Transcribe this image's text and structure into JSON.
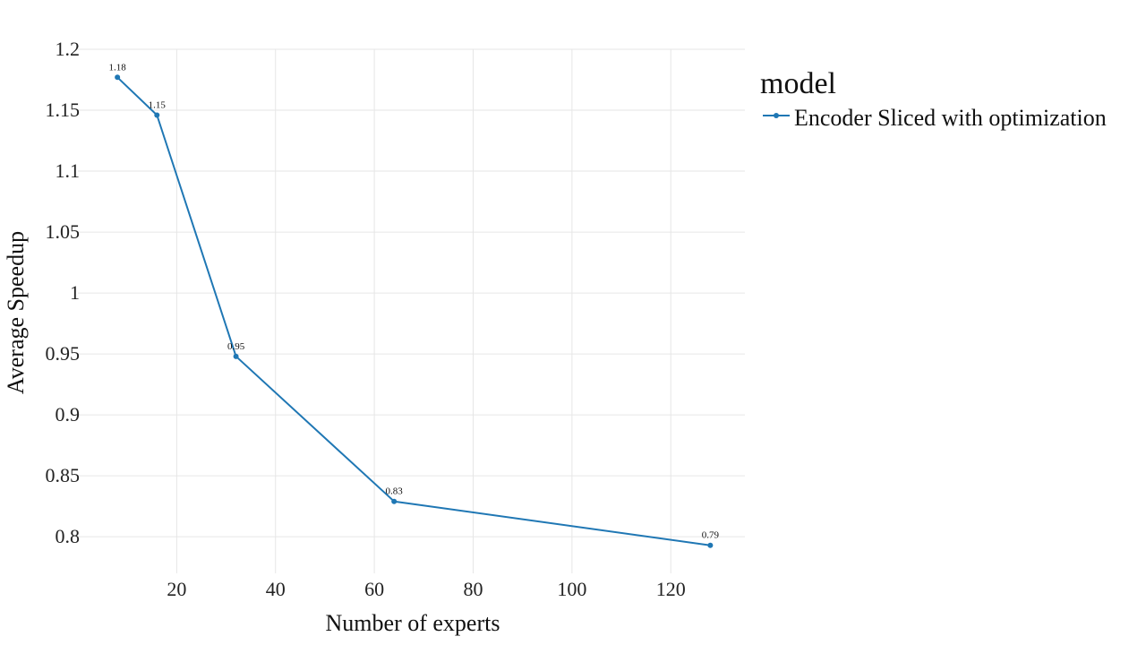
{
  "chart_data": {
    "type": "line",
    "xlabel": "Number of experts",
    "ylabel": "Average Speedup",
    "x_ticks": [
      20,
      40,
      60,
      80,
      100,
      120
    ],
    "y_ticks": [
      0.8,
      0.85,
      0.9,
      0.95,
      1,
      1.05,
      1.1,
      1.15,
      1.2
    ],
    "x_tick_labels": [
      "20",
      "40",
      "60",
      "80",
      "100",
      "120"
    ],
    "y_tick_labels": [
      "0.8",
      "0.85",
      "0.9",
      "0.95",
      "1",
      "1.05",
      "1.1",
      "1.15",
      "1.2"
    ],
    "xlim": [
      0,
      135
    ],
    "ylim": [
      0.77,
      1.2
    ],
    "grid": true,
    "legend": {
      "title": "model",
      "position": "right"
    },
    "series": [
      {
        "name": "Encoder Sliced with optimization",
        "color": "#1f77b4",
        "x": [
          8,
          16,
          32,
          64,
          128
        ],
        "y": [
          1.177,
          1.146,
          0.948,
          0.829,
          0.793
        ],
        "labels": [
          "1.18",
          "1.15",
          "0.95",
          "0.83",
          "0.79"
        ]
      }
    ]
  }
}
